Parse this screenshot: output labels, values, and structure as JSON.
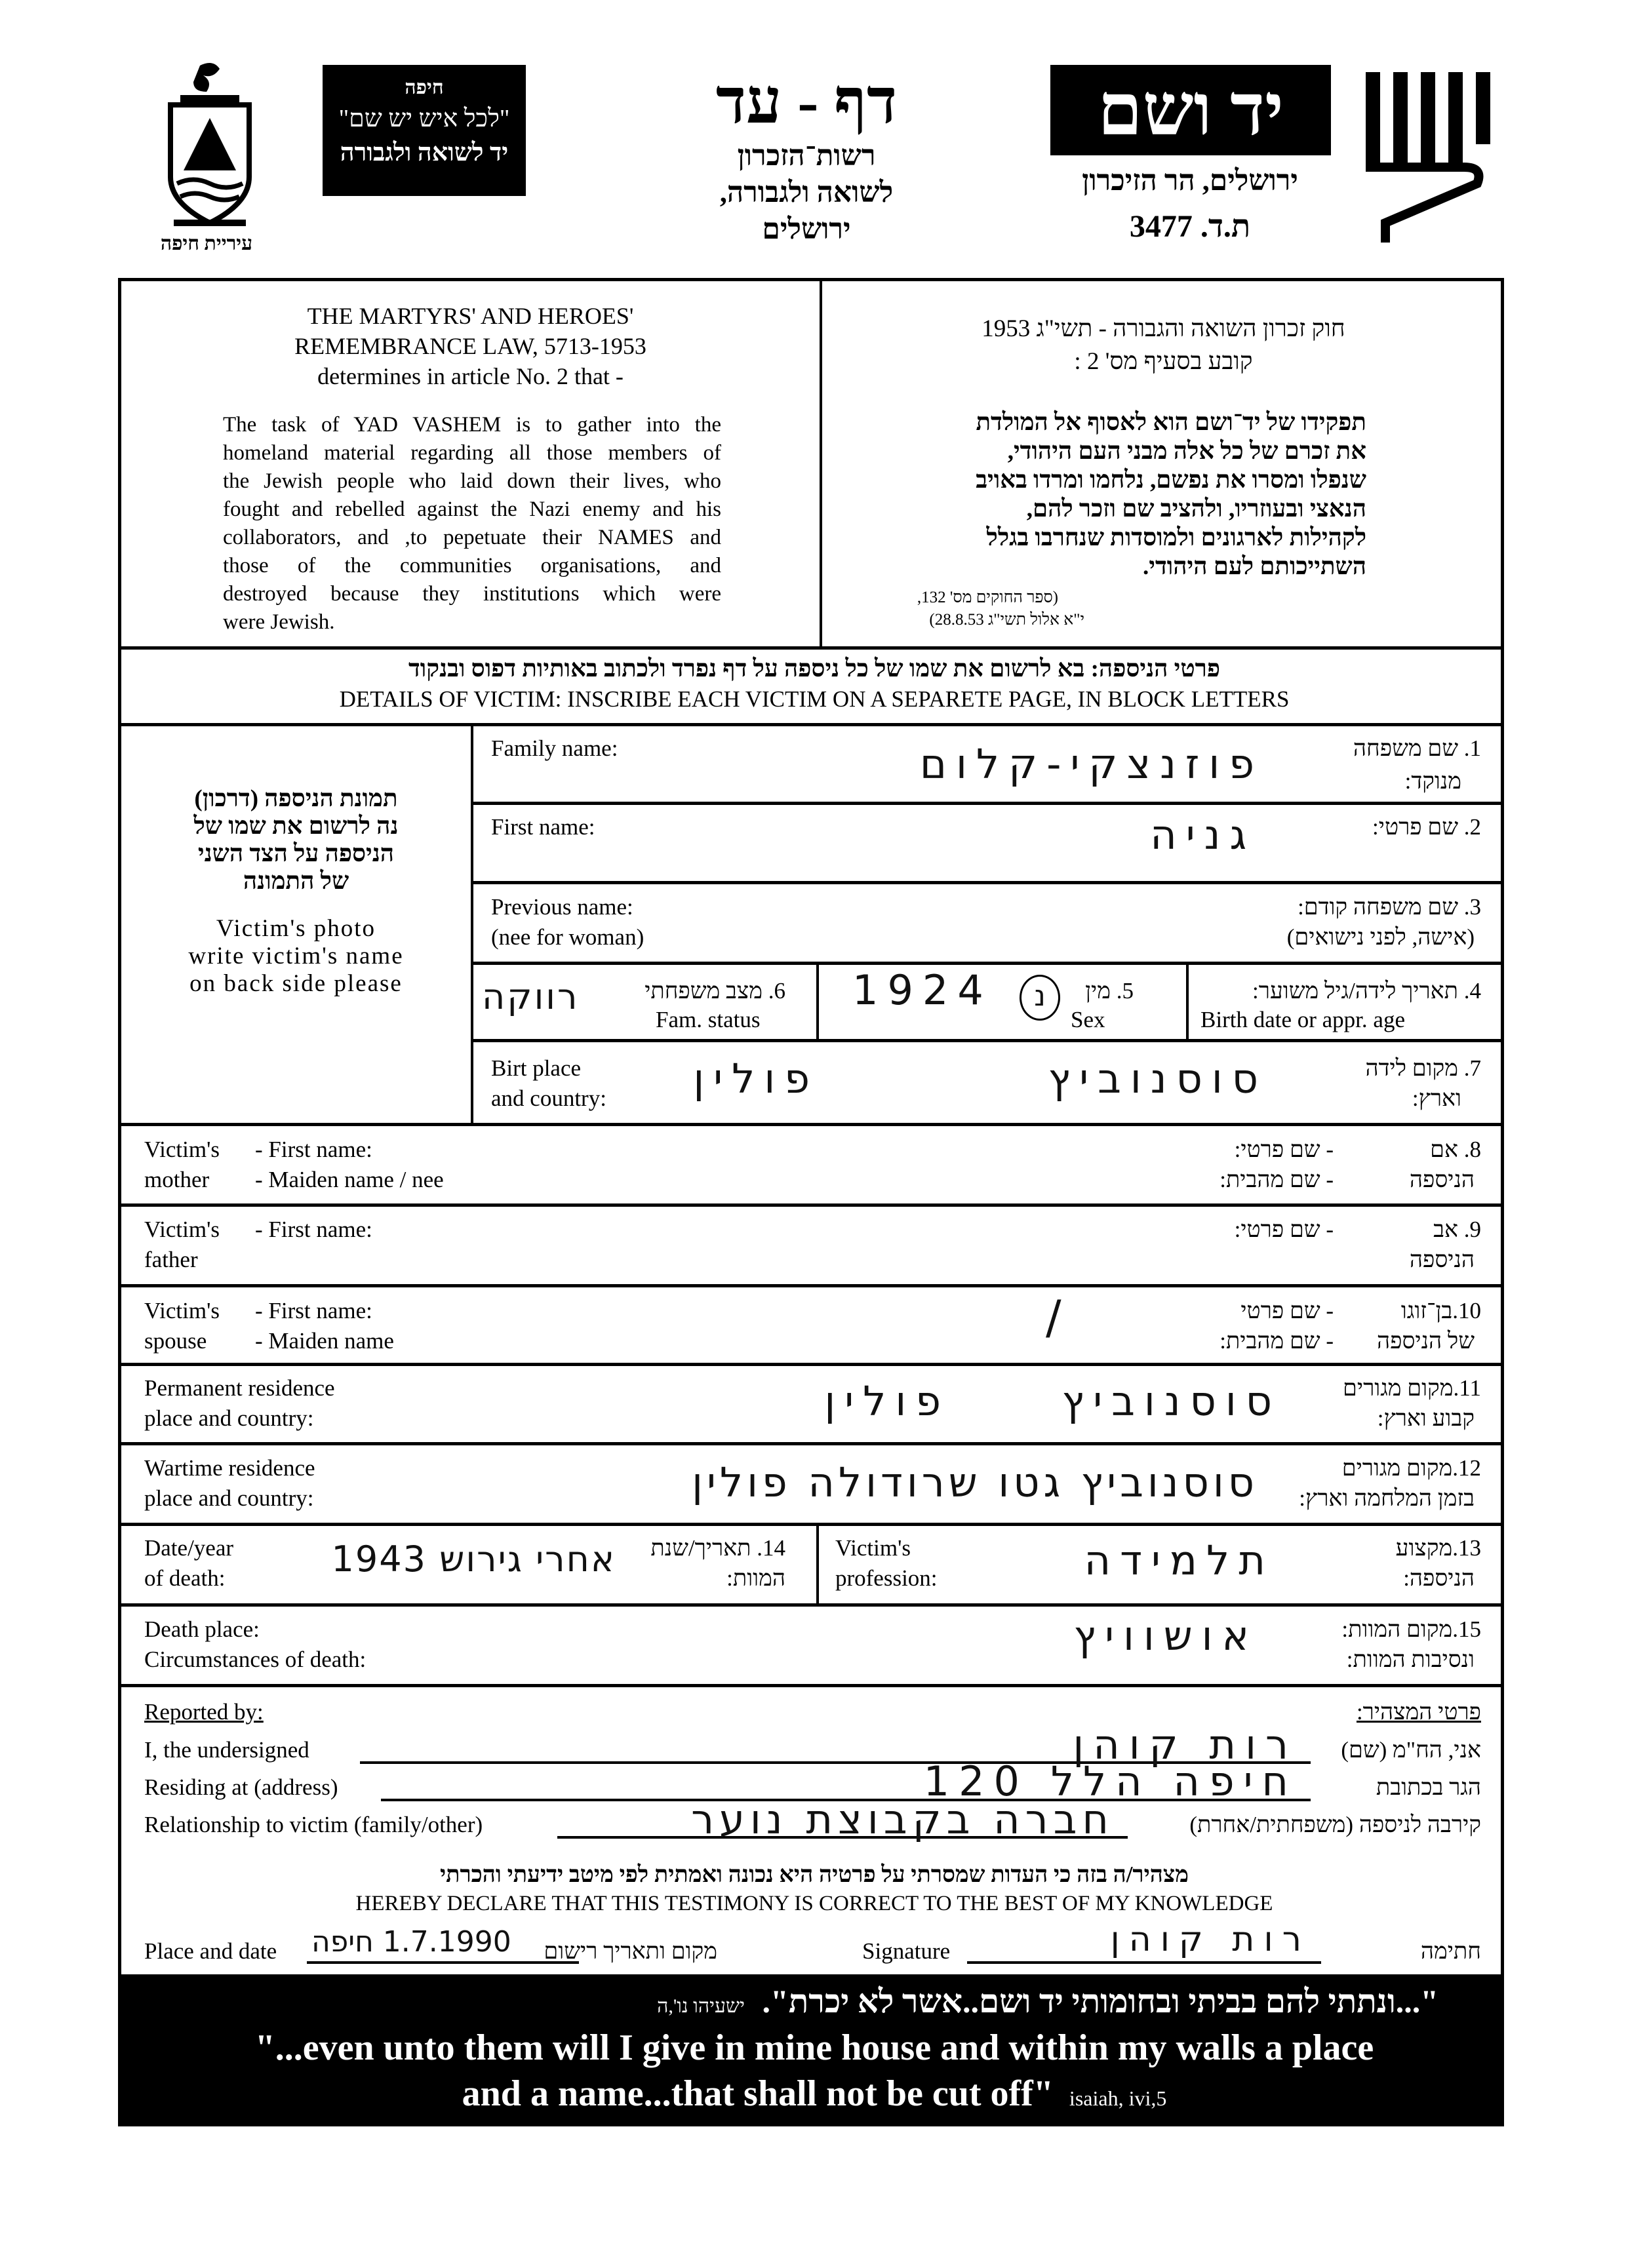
{
  "header": {
    "haifa_box": {
      "line1": "חיפה",
      "line2": "\"לכל איש יש שם\"",
      "line3": "יד לשואה ולגבורה"
    },
    "city_label": "עיריית חיפה",
    "title": "דף - עד",
    "subtitle_lines": [
      "רשות־הזכרון",
      "לשואה ולגבורה,",
      "ירושלים"
    ],
    "yad_vashem": "יד ושם",
    "yv_address": "ירושלים, הר הזיכרון",
    "po_box": "ת.ד. 3477"
  },
  "law": {
    "en_title": [
      "THE MARTYRS' AND HEROES'",
      "REMEMBRANCE LAW, 5713-1953",
      "determines in article No. 2 that -"
    ],
    "en_body": [
      "The task of YAD VASHEM is to gather into the",
      "homeland material regarding all those members of",
      "the Jewish people who laid down their lives, who",
      "fought and rebelled against the Nazi enemy and his",
      "collaborators, and ,to pepetuate their NAMES and",
      "those of the communities organisations, and",
      "destroyed because they institutions which were",
      "were Jewish."
    ],
    "he_title": [
      "חוק זכרון השואה והגבורה - תשי\"ג 1953",
      "קובע בסעיף מס' 2 :"
    ],
    "he_body": [
      "תפקידו של יד־ושם הוא לאסוף אל המולדת",
      "את זכרם של כל אלה מבני העם היהודי,",
      "שנפלו ומסרו את נפשם, נלחמו ומרדו באויב",
      "הנאצי ובעוזריו, ולהציב שם וזכר להם,",
      "לקהילות לארגונים ולמוסדות שנחרבו בגלל",
      "השתייכותם לעם היהודי."
    ],
    "he_source": [
      "(ספר החוקים מס' 132,",
      "י\"א אלול תשי\"ג 28.8.53)"
    ]
  },
  "details_heading": {
    "he": "פרטי הניספה: בא לרשום את שמו של כל ניספה על דף נפרד ולכתוב באותיות דפוס ובנקוד",
    "en": "DETAILS OF VICTIM: INSCRIBE EACH VICTIM ON A SEPARETE PAGE, IN BLOCK LETTERS"
  },
  "photo": {
    "he": [
      "תמונת הניספה (דרכון)",
      "נה לרשום את שמו של",
      "הניספה על הצד השני",
      "של התמונה"
    ],
    "en": [
      "Victim's photo",
      "write victim's name",
      "on back side please"
    ]
  },
  "fields": {
    "family_name": {
      "en": "Family name:",
      "he1": "1. שם משפחה",
      "he2": "מנוקד:",
      "value": "פוזנצקי-קלום"
    },
    "first_name": {
      "en": "First name:",
      "he1": "2. שם פרטי:",
      "value": "גניה"
    },
    "previous_name": {
      "en1": "Previous name:",
      "en2": "(nee for woman)",
      "he1": "3. שם משפחה קודם:",
      "he2": "(אישה, לפני נישואים)",
      "value": ""
    },
    "fam_status": {
      "he": "6. מצב משפחתי",
      "en": "Fam. status",
      "value": "רווקה"
    },
    "sex": {
      "he": "5. מין",
      "en": "Sex",
      "value": "נ",
      "birth_value": "1924"
    },
    "birth_date": {
      "he": "4. תאריך לידה/גיל משוער:",
      "en": "Birth date or appr. age"
    },
    "birth_place": {
      "en1": "Birt place",
      "en2": "and country:",
      "he1": "7. מקום לידה",
      "he2": "וארץ:",
      "value_place": "סוסנוביץ",
      "value_country": "פולין"
    },
    "mother": {
      "en1": "Victim's",
      "en2": "mother",
      "sub1": "- First name:",
      "sub2": "- Maiden name / nee",
      "he1": "8. אם",
      "he2": "הניספה",
      "hsub1": "- שם פרטי:",
      "hsub2": "- שם מהבית:"
    },
    "father": {
      "en1": "Victim's",
      "en2": "father",
      "sub1": "- First name:",
      "he1": "9. אב",
      "he2": "הניספה",
      "hsub1": "- שם פרטי:"
    },
    "spouse": {
      "en1": "Victim's",
      "en2": "spouse",
      "sub1": "- First name:",
      "sub2": "- Maiden name",
      "he1": "10.בן־זוגו",
      "he2": "של הניספה",
      "hsub1": "- שם פרטי",
      "hsub2": "- שם מהבית:",
      "value": "/"
    },
    "permanent_residence": {
      "en1": "Permanent residence",
      "en2": "place and country:",
      "he1": "11.מקום מגורים",
      "he2": "קבוע וארץ:",
      "value_place": "סוסנוביץ",
      "value_country": "פולין"
    },
    "wartime_residence": {
      "en1": "Wartime residence",
      "en2": "place and country:",
      "he1": "12.מקום מגורים",
      "he2": "בזמן המלחמה וארץ:",
      "value": "סוסנוביץ גטו שרודולה פולין"
    },
    "death_date": {
      "en1": "Date/year",
      "en2": "of death:",
      "he1": "14. תאריך/שנת",
      "he2": "המוות:",
      "value": "אחרי גירוש 1943"
    },
    "profession": {
      "en1": "Victim's",
      "en2": "profession:",
      "he1": "13.מקצוע",
      "he2": "הניספה:",
      "value": "תלמידה"
    },
    "death_place": {
      "en1": "Death place:",
      "en2": "Circumstances of death:",
      "he1": "15.מקום המוות:",
      "he2": "ונסיבות המוות:",
      "value": "אושוויץ"
    }
  },
  "reporter": {
    "en_heading": "Reported by:",
    "he_heading": "פרטי המצהיר:",
    "undersigned_en": "I, the undersigned",
    "undersigned_he": "אני, הח\"מ (שם)",
    "undersigned_value": "רות קוהן",
    "address_en": "Residing at (address)",
    "address_he": "הגר בכתובת",
    "address_value": "חיפה הלל 120",
    "relationship_en": "Relationship to victim (family/other)",
    "relationship_he": "קירבה לניספה (משפחתית/אחרת)",
    "relationship_value": "חברה בקבוצת נוער",
    "declaration_he": "מצהיר/ה בזה כי העדות שמסרתי על פרטיה היא נכונה ואמתית לפי מיטב ידיעתי והכרתי",
    "declaration_en": "HEREBY DECLARE THAT THIS TESTIMONY IS CORRECT TO THE BEST OF MY KNOWLEDGE",
    "place_date_en": "Place and date",
    "place_date_value": "1.7.1990 חיפה",
    "place_date_he": "מקום ותאריך רישום",
    "signature_en": "Signature",
    "signature_value": "רות קוהן",
    "signature_he": "חתימה"
  },
  "banner": {
    "he": "\"...ונתתי להם בביתי ובחומותי יד ושם..אשר לא יכרת\".",
    "he_ref": "ישעיהו נו',ה",
    "en1": "\"...even unto them will I give in mine house and within my walls a place",
    "en2": "and a name...that shall not be cut off\"",
    "en_ref": "isaiah, ivi,5"
  }
}
